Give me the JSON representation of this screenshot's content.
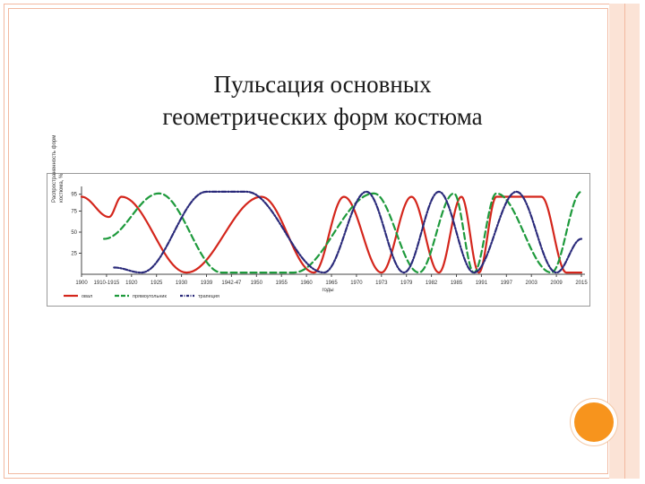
{
  "slide": {
    "title_line1": "Пульсация основных",
    "title_line2": "геометрических форм костюма"
  },
  "theme": {
    "accent": "#f7941d",
    "frame": "#f2b9a0",
    "band": "#fbe3d6"
  },
  "chart_data": {
    "type": "line",
    "title": "",
    "ylabel_line1": "Распространенность форм",
    "ylabel_line2": "костюма, %",
    "xlabel": "годы",
    "ylim": [
      0,
      100
    ],
    "yticks": [
      "25",
      "50",
      "75",
      "95"
    ],
    "x": [
      "1900",
      "1910-1915",
      "1920",
      "1925",
      "1930",
      "1939",
      "1942-47",
      "1950",
      "1955",
      "1960",
      "1965",
      "1970",
      "1973",
      "1979",
      "1982",
      "1985",
      "1991",
      "1997",
      "2003",
      "2009",
      "2015"
    ],
    "legend_position": "bottom",
    "grid": false,
    "series": [
      {
        "name": "овал",
        "color": "#d4261c",
        "style": "solid",
        "values": [
          [
            0,
            92
          ],
          [
            1.1,
            68
          ],
          [
            1.6,
            92
          ],
          [
            4.2,
            2
          ],
          [
            7.2,
            92
          ],
          [
            9.3,
            2
          ],
          [
            10.5,
            92
          ],
          [
            12.0,
            2
          ],
          [
            13.2,
            92
          ],
          [
            14.3,
            2
          ],
          [
            15.2,
            92
          ],
          [
            15.9,
            2
          ],
          [
            16.6,
            92
          ],
          [
            18.4,
            92
          ],
          [
            19.4,
            2
          ],
          [
            20.0,
            2
          ]
        ]
      },
      {
        "name": "прямоугольник",
        "color": "#1e9a3c",
        "style": "dashed",
        "values": [
          [
            0.9,
            42
          ],
          [
            3.1,
            96
          ],
          [
            5.6,
            2
          ],
          [
            8.5,
            2
          ],
          [
            11.7,
            96
          ],
          [
            13.5,
            2
          ],
          [
            14.9,
            96
          ],
          [
            15.7,
            2
          ],
          [
            16.6,
            96
          ],
          [
            18.8,
            2
          ],
          [
            20.0,
            98
          ]
        ]
      },
      {
        "name": "трапеция",
        "color": "#2a2a7a",
        "style": "dashdot",
        "values": [
          [
            1.3,
            8
          ],
          [
            2.4,
            2
          ],
          [
            5.0,
            98
          ],
          [
            6.6,
            98
          ],
          [
            9.7,
            2
          ],
          [
            11.4,
            98
          ],
          [
            12.9,
            2
          ],
          [
            14.3,
            98
          ],
          [
            15.7,
            2
          ],
          [
            17.4,
            98
          ],
          [
            19.0,
            2
          ],
          [
            20.0,
            42
          ]
        ]
      }
    ]
  }
}
